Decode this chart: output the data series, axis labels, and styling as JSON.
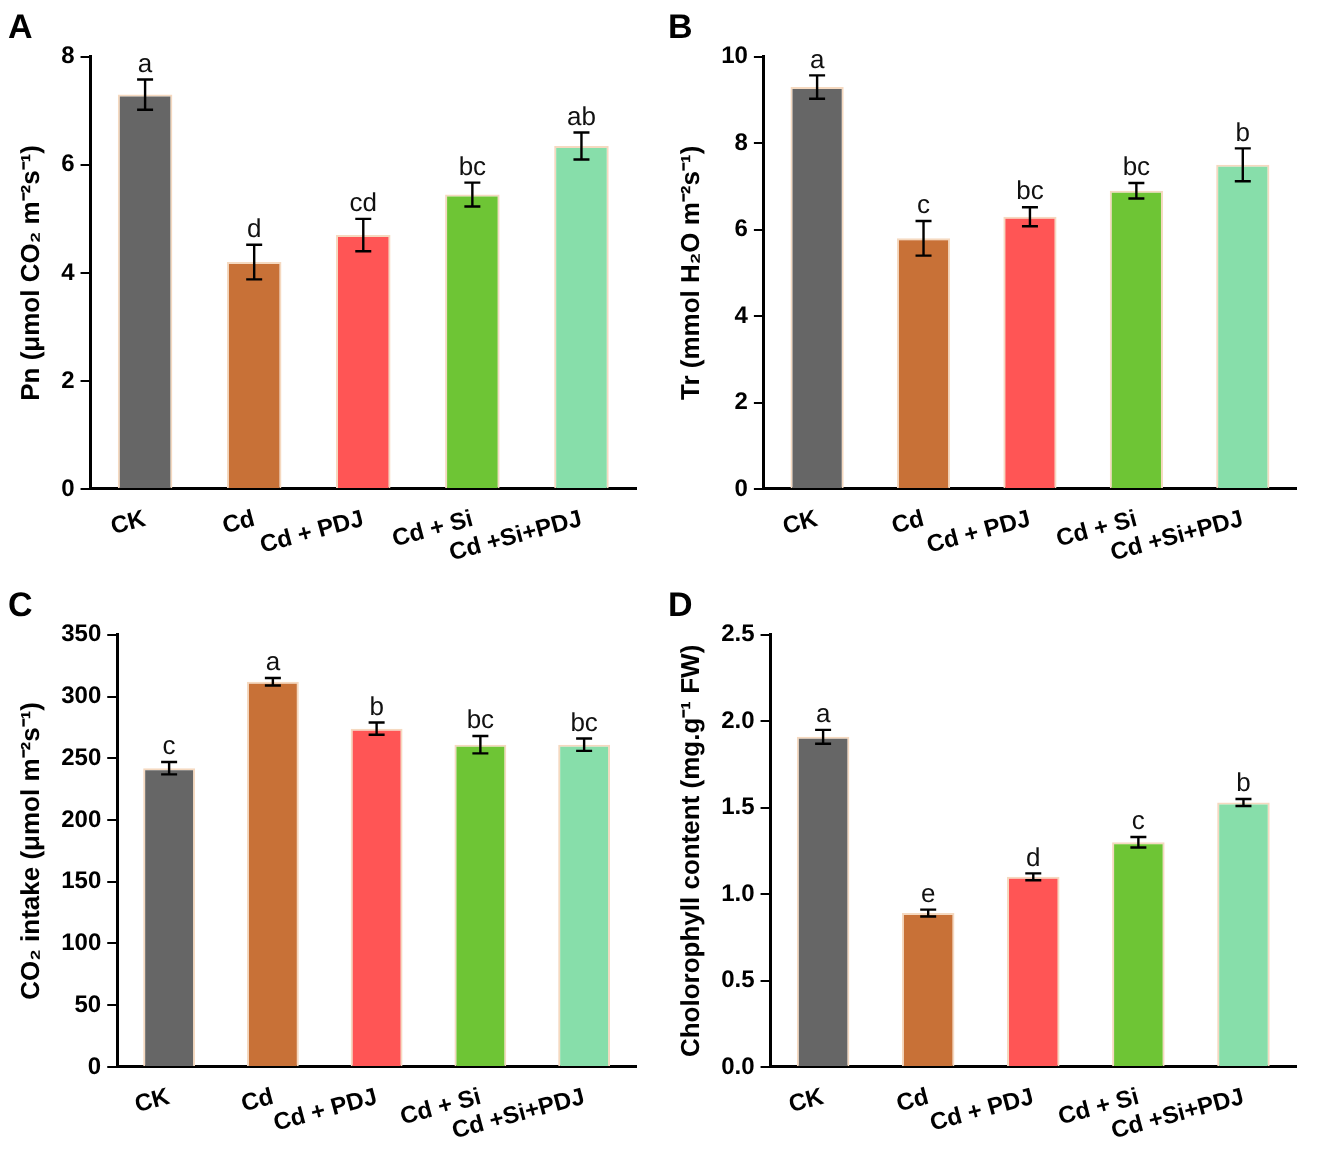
{
  "chart_data": [
    {
      "type": "bar",
      "title": "A",
      "ylabel": "Pn (μmol CO₂ m⁻²s⁻¹)",
      "categories": [
        "CK",
        "Cd",
        "Cd + PDJ",
        "Cd + Si",
        "Cd +Si+PDJ"
      ],
      "values": [
        7.3,
        4.2,
        4.7,
        5.45,
        6.35
      ],
      "errors": [
        0.28,
        0.32,
        0.3,
        0.22,
        0.25
      ],
      "colors": [
        "#666666",
        "#c87137",
        "#ff5555",
        "#6ec535",
        "#87deaa"
      ],
      "ylim": [
        0,
        8
      ],
      "yticks": [
        0,
        2,
        4,
        6,
        8
      ],
      "grid": false,
      "legend": false,
      "annotations": [
        {
          "text": "a",
          "x": "CK",
          "y": 7.58
        },
        {
          "text": "d",
          "x": "Cd",
          "y": 4.52
        },
        {
          "text": "cd",
          "x": "Cd + PDJ",
          "y": 5.0
        },
        {
          "text": "bc",
          "x": "Cd + Si",
          "y": 5.67
        },
        {
          "text": "ab",
          "x": "Cd +Si+PDJ",
          "y": 6.6
        }
      ]
    },
    {
      "type": "bar",
      "title": "B",
      "ylabel": "Tr (mmol H₂O m⁻²s⁻¹)",
      "categories": [
        "CK",
        "Cd",
        "Cd + PDJ",
        "Cd + Si",
        "Cd +Si+PDJ"
      ],
      "values": [
        9.3,
        5.8,
        6.3,
        6.9,
        7.5
      ],
      "errors": [
        0.27,
        0.4,
        0.22,
        0.18,
        0.38
      ],
      "colors": [
        "#666666",
        "#c87137",
        "#ff5555",
        "#6ec535",
        "#87deaa"
      ],
      "ylim": [
        0,
        10
      ],
      "yticks": [
        0,
        2,
        4,
        6,
        8,
        10
      ],
      "grid": false,
      "legend": false,
      "annotations": [
        {
          "text": "a",
          "x": "CK",
          "y": 9.57
        },
        {
          "text": "c",
          "x": "Cd",
          "y": 6.2
        },
        {
          "text": "bc",
          "x": "Cd + PDJ",
          "y": 6.52
        },
        {
          "text": "bc",
          "x": "Cd + Si",
          "y": 7.08
        },
        {
          "text": "b",
          "x": "Cd +Si+PDJ",
          "y": 7.88
        }
      ]
    },
    {
      "type": "bar",
      "title": "C",
      "ylabel": "CO₂ intake (μmol m⁻²s⁻¹)",
      "categories": [
        "CK",
        "Cd",
        "Cd + PDJ",
        "Cd + Si",
        "Cd +Si+PDJ"
      ],
      "values": [
        242,
        312,
        274,
        261,
        261
      ],
      "errors": [
        5,
        3,
        5,
        7,
        5
      ],
      "colors": [
        "#666666",
        "#c87137",
        "#ff5555",
        "#6ec535",
        "#87deaa"
      ],
      "ylim": [
        0,
        350
      ],
      "yticks": [
        0,
        50,
        100,
        150,
        200,
        250,
        300,
        350
      ],
      "grid": false,
      "legend": false,
      "annotations": [
        {
          "text": "c",
          "x": "CK",
          "y": 247
        },
        {
          "text": "a",
          "x": "Cd",
          "y": 315
        },
        {
          "text": "b",
          "x": "Cd + PDJ",
          "y": 279
        },
        {
          "text": "bc",
          "x": "Cd + Si",
          "y": 268
        },
        {
          "text": "bc",
          "x": "Cd +Si+PDJ",
          "y": 266
        }
      ]
    },
    {
      "type": "bar",
      "title": "D",
      "ylabel": "Cholorophyll content (mg.g⁻¹ FW)",
      "categories": [
        "CK",
        "Cd",
        "Cd + PDJ",
        "Cd + Si",
        "Cd +Si+PDJ"
      ],
      "values": [
        1.91,
        0.89,
        1.1,
        1.3,
        1.53
      ],
      "errors": [
        0.04,
        0.02,
        0.02,
        0.03,
        0.02
      ],
      "colors": [
        "#666666",
        "#c87137",
        "#ff5555",
        "#6ec535",
        "#87deaa"
      ],
      "ylim": [
        0,
        2.5
      ],
      "yticks": [
        {
          "value": 0,
          "label": "0.0"
        },
        0.5,
        {
          "value": 1,
          "label": "1.0"
        },
        1.5,
        {
          "value": 2,
          "label": "2.0"
        },
        2.5
      ],
      "grid": false,
      "legend": false,
      "annotations": [
        {
          "text": "a",
          "x": "CK",
          "y": 1.95
        },
        {
          "text": "e",
          "x": "Cd",
          "y": 0.91
        },
        {
          "text": "d",
          "x": "Cd + PDJ",
          "y": 1.12
        },
        {
          "text": "c",
          "x": "Cd + Si",
          "y": 1.33
        },
        {
          "text": "b",
          "x": "Cd +Si+PDJ",
          "y": 1.55
        }
      ]
    }
  ]
}
